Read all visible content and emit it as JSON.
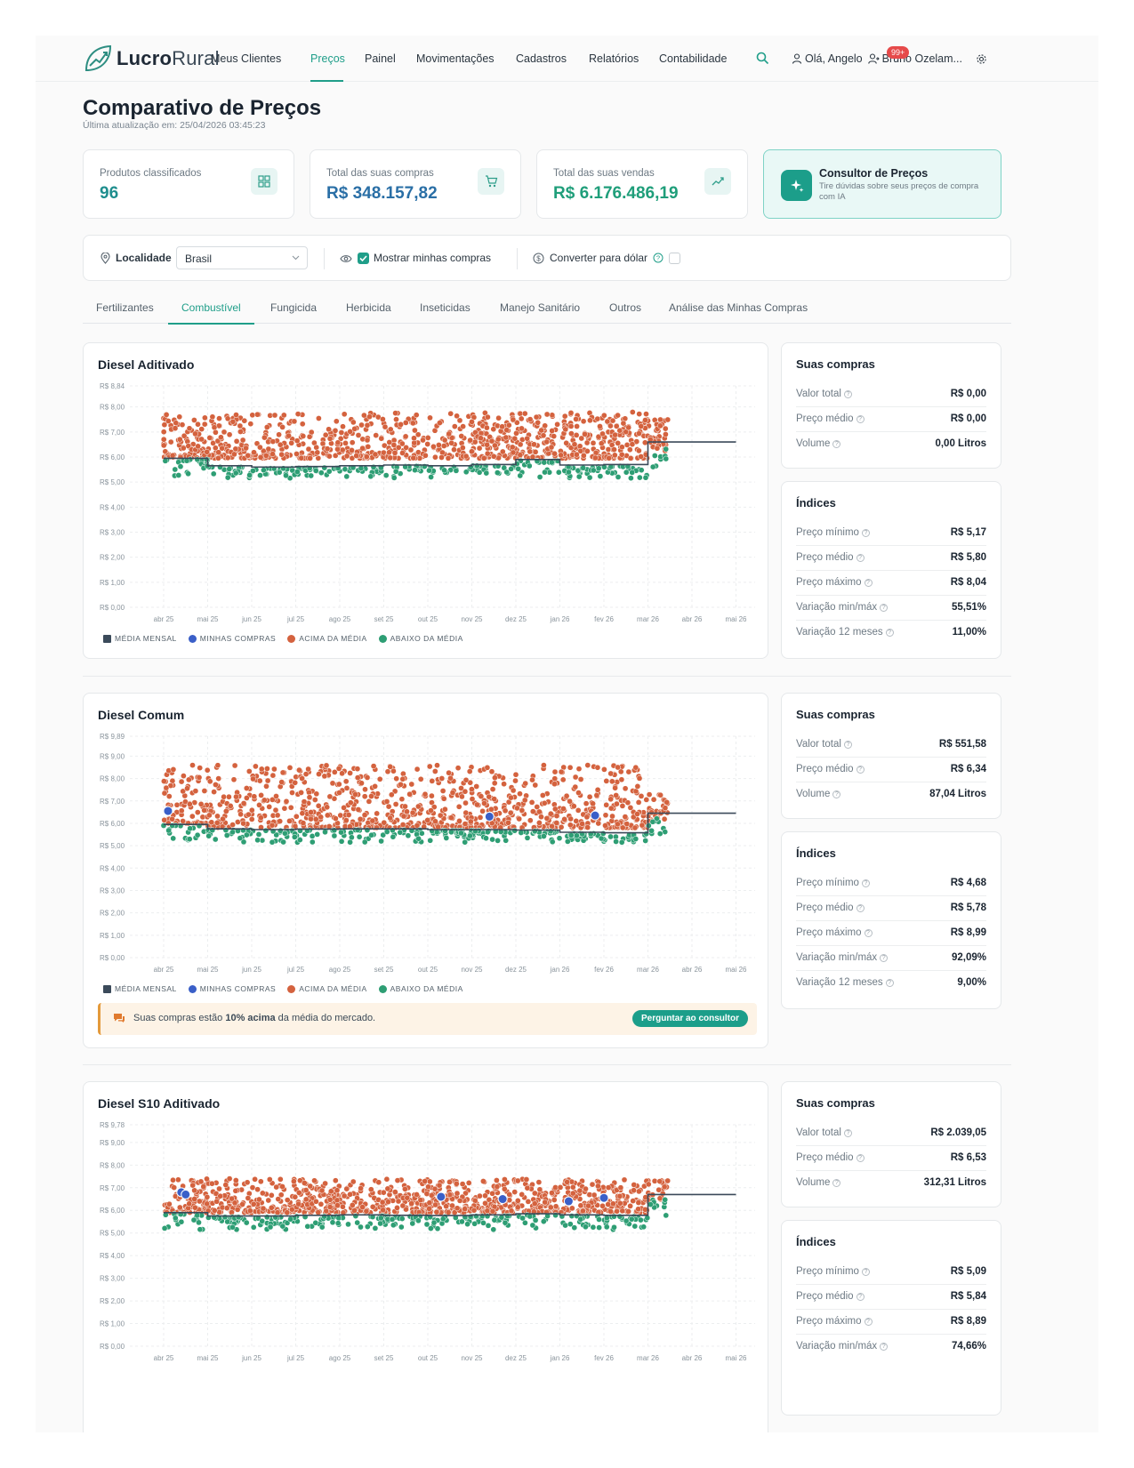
{
  "brand": {
    "name_bold": "Lucro",
    "name_light": "Rural"
  },
  "nav": {
    "items": [
      {
        "label": "Meus Clientes",
        "active": false
      },
      {
        "label": "Preços",
        "active": true
      },
      {
        "label": "Painel",
        "active": false
      },
      {
        "label": "Movimentações",
        "active": false
      },
      {
        "label": "Cadastros",
        "active": false
      },
      {
        "label": "Relatórios",
        "active": false
      },
      {
        "label": "Contabilidade",
        "active": false
      }
    ],
    "greeting": "Olá, Angelo",
    "notif_badge": "99+",
    "client": "Bruno Ozelam..."
  },
  "page": {
    "title": "Comparativo de Preços",
    "updated": "Última atualização em: 25/04/2026 03:45:23"
  },
  "kpis": [
    {
      "label": "Produtos classificados",
      "value": "96",
      "icon": "grid-icon"
    },
    {
      "label": "Total das suas compras",
      "value": "R$ 348.157,82",
      "icon": "cart-icon"
    },
    {
      "label": "Total das suas vendas",
      "value": "R$ 6.176.486,19",
      "icon": "trend-up-icon"
    }
  ],
  "consultant": {
    "title": "Consultor de Preços",
    "subtitle": "Tire dúvidas sobre seus preços de compra com IA"
  },
  "filters": {
    "location_label": "Localidade",
    "location_value": "Brasil",
    "show_purchases_label": "Mostrar minhas compras",
    "show_purchases_checked": true,
    "convert_dollar_label": "Converter para dólar",
    "convert_dollar_checked": false
  },
  "tabs": [
    {
      "label": "Fertilizantes",
      "active": false
    },
    {
      "label": "Combustível",
      "active": true
    },
    {
      "label": "Fungicida",
      "active": false
    },
    {
      "label": "Herbicida",
      "active": false
    },
    {
      "label": "Inseticidas",
      "active": false
    },
    {
      "label": "Manejo Sanitário",
      "active": false
    },
    {
      "label": "Outros",
      "active": false
    },
    {
      "label": "Análise das Minhas Compras",
      "active": false
    }
  ],
  "legend": {
    "mean": "MÉDIA MENSAL",
    "mine": "MINHAS COMPRAS",
    "above": "ACIMA DA MÉDIA",
    "below": "ABAIXO DA MÉDIA"
  },
  "colors": {
    "accent": "#1f9e89",
    "above": "#d4623e",
    "below": "#2e9e74",
    "mine": "#3a5fc8",
    "mean": "#3b4a5a"
  },
  "side_labels": {
    "purchases_title": "Suas compras",
    "indices_title": "Índices",
    "total": "Valor total",
    "avg_price": "Preço médio",
    "volume": "Volume",
    "min_price": "Preço mínimo",
    "max_price": "Preço máximo",
    "var_minmax": "Variação min/máx",
    "var_12m": "Variação 12 meses"
  },
  "products": [
    {
      "name": "Diesel Aditivado",
      "purchases": {
        "total": "R$ 0,00",
        "avg": "R$ 0,00",
        "volume": "0,00 Litros"
      },
      "indices": {
        "min": "R$ 5,17",
        "avg": "R$ 5,80",
        "max": "R$ 8,04",
        "var_minmax": "55,51%",
        "var_12m": "11,00%"
      },
      "alert": null
    },
    {
      "name": "Diesel Comum",
      "purchases": {
        "total": "R$ 551,58",
        "avg": "R$ 6,34",
        "volume": "87,04 Litros"
      },
      "indices": {
        "min": "R$ 4,68",
        "avg": "R$ 5,78",
        "max": "R$ 8,99",
        "var_minmax": "92,09%",
        "var_12m": "9,00%"
      },
      "alert": {
        "pre": "Suas compras estão ",
        "bold": "10% acima",
        "post": " da média do mercado.",
        "button": "Perguntar ao consultor"
      }
    },
    {
      "name": "Diesel S10 Aditivado",
      "purchases": {
        "total": "R$ 2.039,05",
        "avg": "R$ 6,53",
        "volume": "312,31 Litros"
      },
      "indices": {
        "min": "R$ 5,09",
        "avg": "R$ 5,84",
        "max": "R$ 8,89",
        "var_minmax": "74,66%",
        "var_12m": null
      },
      "alert": null
    }
  ],
  "chart_data": [
    {
      "type": "scatter",
      "title": "Diesel Aditivado",
      "x_labels": [
        "abr 25",
        "mai 25",
        "jun 25",
        "jul 25",
        "ago 25",
        "set 25",
        "out 25",
        "nov 25",
        "dez 25",
        "jan 26",
        "fev 26",
        "mar 26",
        "abr 26",
        "mai 26"
      ],
      "y_ticks": [
        "R$ 0,00",
        "R$ 1,00",
        "R$ 2,00",
        "R$ 3,00",
        "R$ 4,00",
        "R$ 5,00",
        "R$ 6,00",
        "R$ 7,00",
        "R$ 8,00",
        "R$ 8,84"
      ],
      "ylim": [
        0,
        8.84
      ],
      "series": [
        {
          "name": "MÉDIA MENSAL",
          "kind": "step",
          "values": [
            5.95,
            5.65,
            5.6,
            5.62,
            5.65,
            5.68,
            5.65,
            5.7,
            5.9,
            5.68,
            5.7,
            6.6,
            6.6
          ]
        },
        {
          "name": "ACIMA DA MÉDIA",
          "kind": "cloud",
          "range": [
            5.95,
            7.8
          ]
        },
        {
          "name": "ABAIXO DA MÉDIA",
          "kind": "cloud",
          "range": [
            5.2,
            5.7
          ]
        },
        {
          "name": "MINHAS COMPRAS",
          "points": []
        }
      ]
    },
    {
      "type": "scatter",
      "title": "Diesel Comum",
      "x_labels": [
        "abr 25",
        "mai 25",
        "jun 25",
        "jul 25",
        "ago 25",
        "set 25",
        "out 25",
        "nov 25",
        "dez 25",
        "jan 26",
        "fev 26",
        "mar 26",
        "abr 26",
        "mai 26"
      ],
      "y_ticks": [
        "R$ 0,00",
        "R$ 1,00",
        "R$ 2,00",
        "R$ 3,00",
        "R$ 4,00",
        "R$ 5,00",
        "R$ 6,00",
        "R$ 7,00",
        "R$ 8,00",
        "R$ 9,00",
        "R$ 9,89"
      ],
      "ylim": [
        0,
        9.89
      ],
      "series": [
        {
          "name": "MÉDIA MENSAL",
          "kind": "step",
          "values": [
            5.95,
            5.75,
            5.72,
            5.74,
            5.75,
            5.75,
            5.72,
            5.72,
            5.7,
            5.6,
            5.58,
            6.45,
            6.45
          ]
        },
        {
          "name": "ACIMA DA MÉDIA",
          "kind": "cloud",
          "range": [
            5.8,
            8.6
          ]
        },
        {
          "name": "ABAIXO DA MÉDIA",
          "kind": "cloud",
          "range": [
            5.2,
            5.7
          ]
        },
        {
          "name": "MINHAS COMPRAS",
          "points": [
            {
              "month": 0.1,
              "value": 6.55
            },
            {
              "month": 7.4,
              "value": 6.3
            },
            {
              "month": 9.8,
              "value": 6.35
            }
          ]
        }
      ]
    },
    {
      "type": "scatter",
      "title": "Diesel S10 Aditivado",
      "x_labels": [
        "abr 25",
        "mai 25",
        "jun 25",
        "jul 25",
        "ago 25",
        "set 25",
        "out 25",
        "nov 25",
        "dez 25",
        "jan 26",
        "fev 26",
        "mar 26",
        "abr 26",
        "mai 26"
      ],
      "y_ticks": [
        "R$ 0,00",
        "R$ 1,00",
        "R$ 2,00",
        "R$ 3,00",
        "R$ 4,00",
        "R$ 5,00",
        "R$ 6,00",
        "R$ 7,00",
        "R$ 8,00",
        "R$ 9,00",
        "R$ 9,78"
      ],
      "ylim": [
        0,
        9.78
      ],
      "series": [
        {
          "name": "MÉDIA MENSAL",
          "kind": "step",
          "values": [
            5.9,
            5.75,
            5.75,
            5.78,
            5.8,
            5.78,
            5.77,
            5.8,
            5.85,
            5.8,
            5.78,
            6.7,
            6.7
          ]
        },
        {
          "name": "ACIMA DA MÉDIA",
          "kind": "cloud",
          "range": [
            5.9,
            7.4
          ]
        },
        {
          "name": "ABAIXO DA MÉDIA",
          "kind": "cloud",
          "range": [
            5.2,
            5.75
          ]
        },
        {
          "name": "MINHAS COMPRAS",
          "points": [
            {
              "month": 0.4,
              "value": 6.8
            },
            {
              "month": 0.5,
              "value": 6.7
            },
            {
              "month": 6.3,
              "value": 6.6
            },
            {
              "month": 7.7,
              "value": 6.5
            },
            {
              "month": 9.2,
              "value": 6.4
            },
            {
              "month": 10.0,
              "value": 6.55
            }
          ]
        }
      ]
    }
  ]
}
